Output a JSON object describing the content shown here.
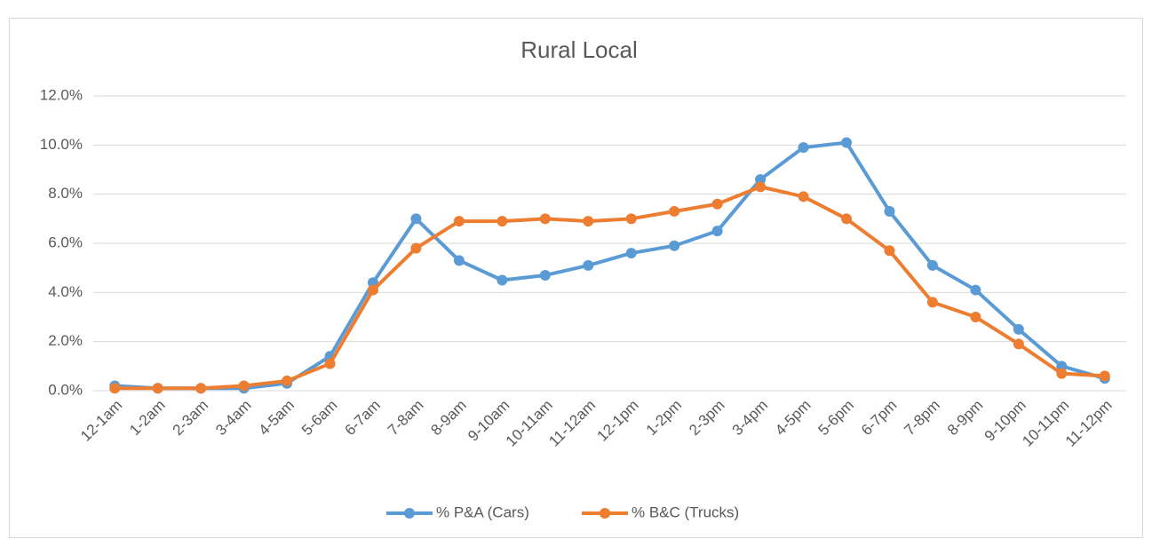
{
  "chart_data": {
    "type": "line",
    "title": "Rural Local",
    "categories": [
      "12-1am",
      "1-2am",
      "2-3am",
      "3-4am",
      "4-5am",
      "5-6am",
      "6-7am",
      "7-8am",
      "8-9am",
      "9-10am",
      "10-11am",
      "11-12am",
      "12-1pm",
      "1-2pm",
      "2-3pm",
      "3-4pm",
      "4-5pm",
      "5-6pm",
      "6-7pm",
      "7-8pm",
      "8-9pm",
      "9-10pm",
      "10-11pm",
      "11-12pm"
    ],
    "series": [
      {
        "name": "% P&A (Cars)",
        "color": "#5b9bd5",
        "values": [
          0.2,
          0.1,
          0.1,
          0.1,
          0.3,
          1.4,
          4.4,
          7.0,
          5.3,
          4.5,
          4.7,
          5.1,
          5.6,
          5.9,
          6.5,
          8.6,
          9.9,
          10.1,
          7.3,
          5.1,
          4.1,
          2.5,
          1.0,
          0.5
        ]
      },
      {
        "name": "% B&C (Trucks)",
        "color": "#ed7d31",
        "values": [
          0.1,
          0.1,
          0.1,
          0.2,
          0.4,
          1.1,
          4.1,
          5.8,
          6.9,
          6.9,
          7.0,
          6.9,
          7.0,
          7.3,
          7.6,
          8.3,
          7.9,
          7.0,
          5.7,
          3.6,
          3.0,
          1.9,
          0.7,
          0.6
        ]
      }
    ],
    "ylim": [
      0,
      12
    ],
    "yticks": [
      {
        "value": 0,
        "label": "0.0%"
      },
      {
        "value": 2,
        "label": "2.0%"
      },
      {
        "value": 4,
        "label": "4.0%"
      },
      {
        "value": 6,
        "label": "6.0%"
      },
      {
        "value": 8,
        "label": "8.0%"
      },
      {
        "value": 10,
        "label": "10.0%"
      },
      {
        "value": 12,
        "label": "12.0%"
      }
    ],
    "grid": true,
    "legend": "bottom"
  }
}
